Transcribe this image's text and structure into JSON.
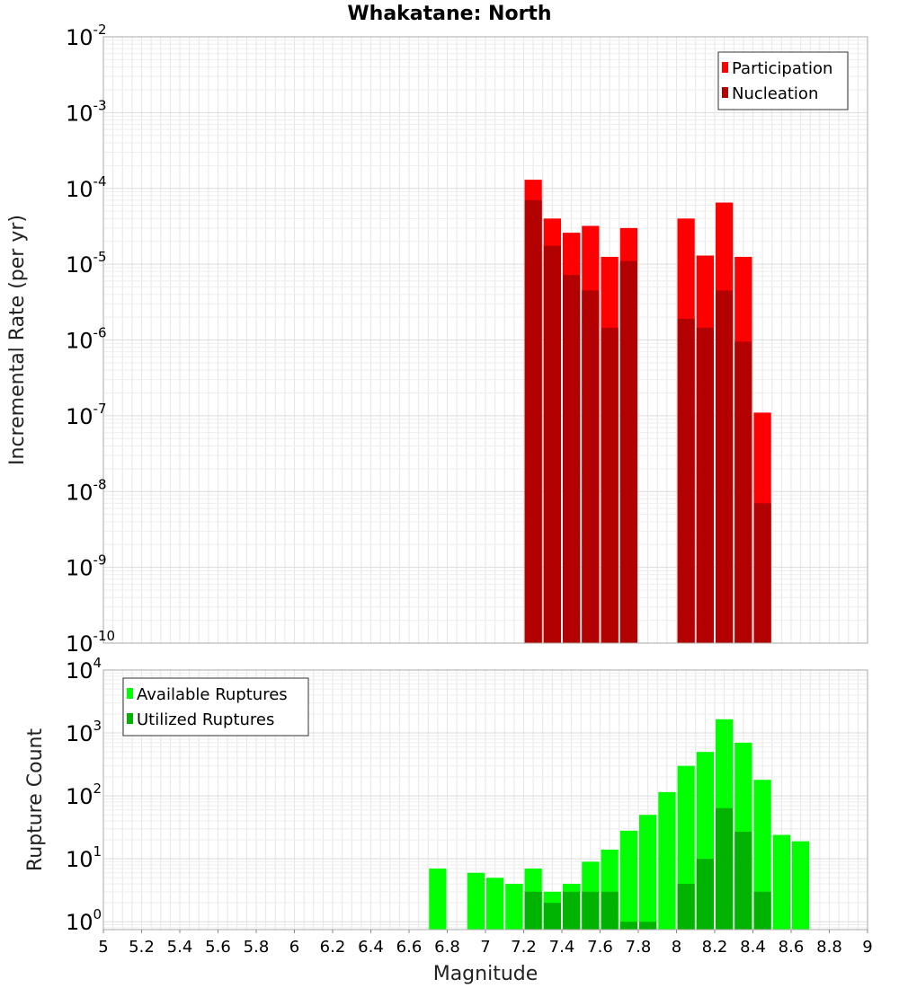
{
  "chart_data": [
    {
      "type": "bar",
      "title": "Whakatane: North",
      "xlabel": "Magnitude",
      "ylabel": "Incremental Rate (per yr)",
      "yscale": "log",
      "ylim": [
        1e-10,
        0.01
      ],
      "xlim": [
        5,
        9
      ],
      "bar_width": 0.1,
      "x": [
        7.25,
        7.35,
        7.45,
        7.55,
        7.65,
        7.75,
        8.05,
        8.15,
        8.25,
        8.35,
        8.45
      ],
      "series": [
        {
          "name": "Participation",
          "color": "#ff0000",
          "values": [
            0.00013,
            4e-05,
            2.6e-05,
            3.2e-05,
            1.25e-05,
            3e-05,
            4e-05,
            1.3e-05,
            6.5e-05,
            1.25e-05,
            1.1e-07
          ]
        },
        {
          "name": "Nucleation",
          "color": "#b30000",
          "values": [
            7e-05,
            1.75e-05,
            7.2e-06,
            4.5e-06,
            1.45e-06,
            1.1e-05,
            1.9e-06,
            1.45e-06,
            4.5e-06,
            9.5e-07,
            7e-09
          ]
        }
      ],
      "legend_position": "top-right",
      "grid": true
    },
    {
      "type": "bar",
      "xlabel": "Magnitude",
      "ylabel": "Rupture Count",
      "yscale": "log",
      "ylim": [
        0.75,
        10000
      ],
      "xlim": [
        5,
        9
      ],
      "bar_width": 0.1,
      "x_ticks": [
        "5",
        "5.2",
        "5.4",
        "5.6",
        "5.8",
        "6",
        "6.2",
        "6.4",
        "6.6",
        "6.8",
        "7",
        "7.2",
        "7.4",
        "7.6",
        "7.8",
        "8",
        "8.2",
        "8.4",
        "8.6",
        "8.8",
        "9"
      ],
      "x": [
        6.75,
        6.95,
        7.05,
        7.15,
        7.25,
        7.35,
        7.45,
        7.55,
        7.65,
        7.75,
        7.85,
        7.95,
        8.05,
        8.15,
        8.25,
        8.35,
        8.45,
        8.55,
        8.65
      ],
      "series": [
        {
          "name": "Available Ruptures",
          "color": "#00ff00",
          "values": [
            7,
            6,
            5,
            4,
            7,
            3,
            4,
            9,
            14,
            28,
            50,
            115,
            300,
            500,
            1650,
            700,
            180,
            24,
            19
          ]
        },
        {
          "name": "Utilized Ruptures",
          "color": "#00b300",
          "values": [
            0,
            0,
            0,
            0,
            3,
            2,
            3,
            3,
            3,
            1,
            1,
            0,
            4,
            10,
            64,
            27,
            3,
            0,
            0
          ]
        }
      ],
      "legend_position": "top-left",
      "grid": true
    }
  ]
}
